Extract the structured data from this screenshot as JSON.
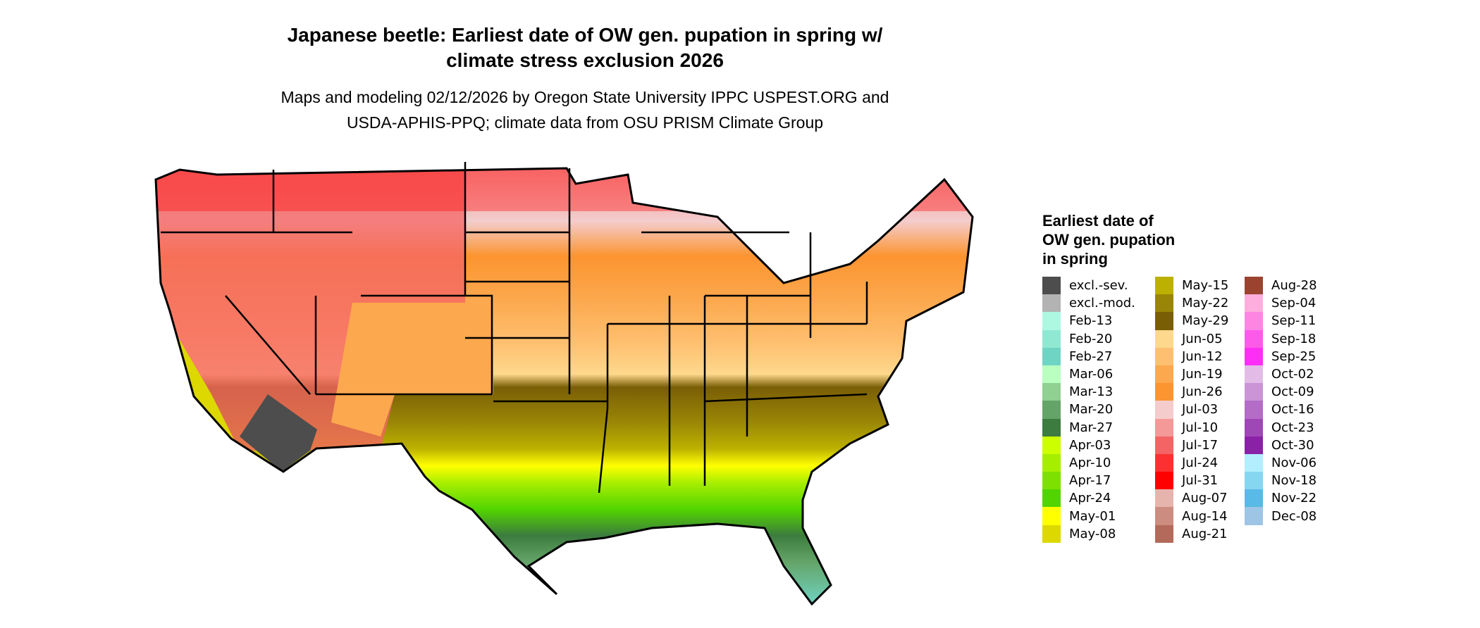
{
  "chart_data": {
    "type": "heatmap",
    "subtype": "choropleth-map",
    "title": "Japanese beetle: Earliest date of OW gen. pupation in spring w/ climate stress exclusion 2026",
    "title_lines": [
      "Japanese beetle: Earliest date of OW gen. pupation in spring w/",
      "climate stress exclusion 2026"
    ],
    "subtitle_lines": [
      "Maps and modeling 02/12/2026 by Oregon State University IPPC USPEST.ORG and",
      "USDA-APHIS-PPQ; climate data from OSU PRISM Climate Group"
    ],
    "region": "Conterminous United States",
    "legend_title": "Earliest date of OW gen. pupation in spring",
    "legend_placement": "right",
    "legend": [
      {
        "label": "excl.-sev.",
        "color": "#4d4d4d"
      },
      {
        "label": "excl.-mod.",
        "color": "#b3b3b3"
      },
      {
        "label": "Feb-13",
        "color": "#aef8e2"
      },
      {
        "label": "Feb-20",
        "color": "#90e8d2"
      },
      {
        "label": "Feb-27",
        "color": "#70d4c4"
      },
      {
        "label": "Mar-06",
        "color": "#baffc0"
      },
      {
        "label": "Mar-13",
        "color": "#90d090"
      },
      {
        "label": "Mar-20",
        "color": "#64a468"
      },
      {
        "label": "Mar-27",
        "color": "#3c7c3e"
      },
      {
        "label": "Apr-03",
        "color": "#ccff00"
      },
      {
        "label": "Apr-10",
        "color": "#a6ee00"
      },
      {
        "label": "Apr-17",
        "color": "#7ee000"
      },
      {
        "label": "Apr-24",
        "color": "#52d400"
      },
      {
        "label": "May-01",
        "color": "#ffff00"
      },
      {
        "label": "May-08",
        "color": "#dcd800"
      },
      {
        "label": "May-15",
        "color": "#bcb000"
      },
      {
        "label": "May-22",
        "color": "#9a8606"
      },
      {
        "label": "May-29",
        "color": "#7a5e06"
      },
      {
        "label": "Jun-05",
        "color": "#fed88c"
      },
      {
        "label": "Jun-12",
        "color": "#fec070"
      },
      {
        "label": "Jun-19",
        "color": "#fca84e"
      },
      {
        "label": "Jun-26",
        "color": "#fc9430"
      },
      {
        "label": "Jul-03",
        "color": "#f4cccc"
      },
      {
        "label": "Jul-10",
        "color": "#f49898"
      },
      {
        "label": "Jul-17",
        "color": "#f46464"
      },
      {
        "label": "Jul-24",
        "color": "#fc3030"
      },
      {
        "label": "Jul-31",
        "color": "#fe0000"
      },
      {
        "label": "Aug-07",
        "color": "#e6b4ac"
      },
      {
        "label": "Aug-14",
        "color": "#cc8c80"
      },
      {
        "label": "Aug-21",
        "color": "#b46a5a"
      },
      {
        "label": "Aug-28",
        "color": "#9a4430"
      },
      {
        "label": "Sep-04",
        "color": "#feaedc"
      },
      {
        "label": "Sep-11",
        "color": "#fe86e2"
      },
      {
        "label": "Sep-18",
        "color": "#fe5aea"
      },
      {
        "label": "Sep-25",
        "color": "#fe2ef6"
      },
      {
        "label": "Oct-02",
        "color": "#e2bce6"
      },
      {
        "label": "Oct-09",
        "color": "#ca94d6"
      },
      {
        "label": "Oct-16",
        "color": "#b46cc6"
      },
      {
        "label": "Oct-23",
        "color": "#9e48b6"
      },
      {
        "label": "Oct-30",
        "color": "#8a22a6"
      },
      {
        "label": "Nov-06",
        "color": "#b2eefe"
      },
      {
        "label": "Nov-18",
        "color": "#86d6f2"
      },
      {
        "label": "Nov-22",
        "color": "#58bae6"
      },
      {
        "label": "Dec-08",
        "color": "#9ec4e6"
      }
    ]
  }
}
